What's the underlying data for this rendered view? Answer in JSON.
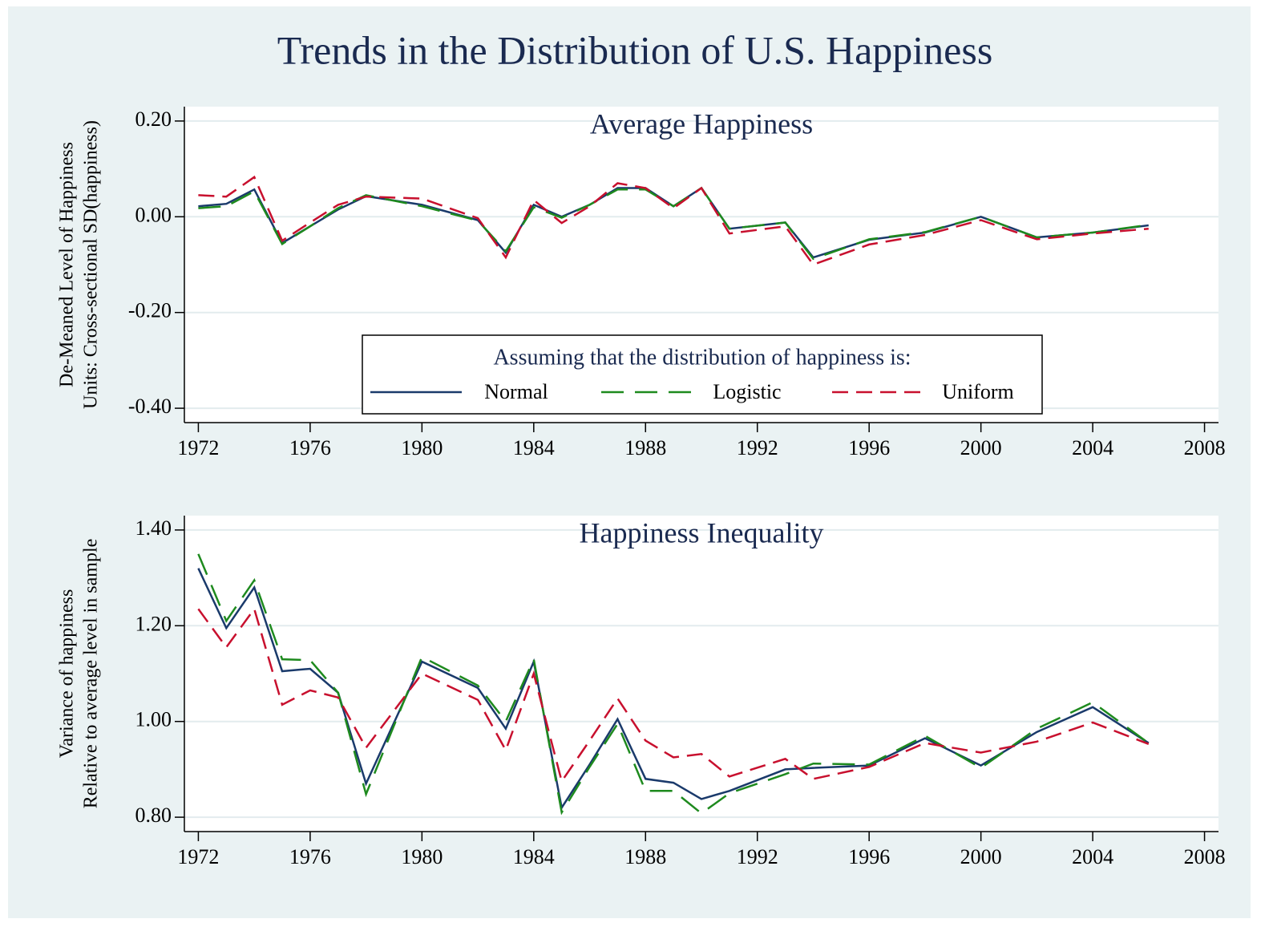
{
  "title": "Trends in the Distribution of U.S. Happiness",
  "chart_data": [
    {
      "type": "line",
      "title": "Average Happiness",
      "ylabel": [
        "De-Meaned Level of Happiness",
        "Units: Cross-sectional SD(happiness)"
      ],
      "x": [
        1972,
        1973,
        1974,
        1975,
        1976,
        1977,
        1978,
        1980,
        1982,
        1983,
        1984,
        1985,
        1986,
        1987,
        1988,
        1989,
        1990,
        1991,
        1993,
        1994,
        1996,
        1998,
        2000,
        2002,
        2004,
        2006
      ],
      "series": [
        {
          "name": "Normal",
          "color": "#1a3a6b",
          "dash": "solid",
          "values": [
            0.022,
            0.027,
            0.057,
            -0.055,
            -0.02,
            0.015,
            0.043,
            0.025,
            -0.007,
            -0.075,
            0.025,
            0.0,
            0.025,
            0.06,
            0.06,
            0.022,
            0.06,
            -0.025,
            -0.012,
            -0.085,
            -0.048,
            -0.033,
            0.0,
            -0.043,
            -0.033,
            -0.018
          ]
        },
        {
          "name": "Logistic",
          "color": "#1e8a1e",
          "dash": "long-dash",
          "values": [
            0.018,
            0.022,
            0.053,
            -0.057,
            -0.02,
            0.018,
            0.045,
            0.022,
            -0.008,
            -0.072,
            0.02,
            -0.002,
            0.025,
            0.057,
            0.057,
            0.022,
            0.06,
            -0.025,
            -0.012,
            -0.088,
            -0.047,
            -0.032,
            0.0,
            -0.043,
            -0.033,
            -0.017
          ]
        },
        {
          "name": "Uniform",
          "color": "#c8102e",
          "dash": "dash",
          "values": [
            0.045,
            0.042,
            0.083,
            -0.05,
            -0.012,
            0.025,
            0.042,
            0.038,
            -0.003,
            -0.085,
            0.035,
            -0.013,
            0.022,
            0.07,
            0.06,
            0.018,
            0.06,
            -0.035,
            -0.02,
            -0.1,
            -0.058,
            -0.038,
            -0.007,
            -0.047,
            -0.035,
            -0.025
          ]
        }
      ],
      "legend_title": "Assuming that the distribution of happiness is:",
      "xlim": [
        1971.5,
        2008.5
      ],
      "xticks": [
        1972,
        1976,
        1980,
        1984,
        1988,
        1992,
        1996,
        2000,
        2004,
        2008
      ],
      "ylim": [
        -0.43,
        0.23
      ],
      "yticks": [
        {
          "value": -0.4,
          "label": "-0.40"
        },
        {
          "value": -0.2,
          "label": "-0.20"
        },
        {
          "value": 0.0,
          "label": "0.00"
        },
        {
          "value": 0.2,
          "label": "0.20"
        }
      ],
      "grid": true
    },
    {
      "type": "line",
      "title": "Happiness Inequality",
      "ylabel": [
        "Variance of happiness",
        "Relative to average level in sample"
      ],
      "x": [
        1972,
        1973,
        1974,
        1975,
        1976,
        1977,
        1978,
        1980,
        1982,
        1983,
        1984,
        1985,
        1986,
        1987,
        1988,
        1989,
        1990,
        1991,
        1993,
        1994,
        1996,
        1998,
        2000,
        2002,
        2004,
        2006
      ],
      "series": [
        {
          "color": "#1a3a6b",
          "dash": "solid",
          "values": [
            1.32,
            1.195,
            1.28,
            1.105,
            1.11,
            1.06,
            0.87,
            1.125,
            1.07,
            0.985,
            1.125,
            0.82,
            0.91,
            1.005,
            0.88,
            0.872,
            0.838,
            0.855,
            0.9,
            0.903,
            0.908,
            0.965,
            0.908,
            0.978,
            1.03,
            0.955
          ]
        },
        {
          "color": "#1e8a1e",
          "dash": "long-dash",
          "values": [
            1.35,
            1.21,
            1.295,
            1.13,
            1.128,
            1.06,
            0.848,
            1.135,
            1.075,
            1.0,
            1.13,
            0.81,
            0.905,
            0.995,
            0.855,
            0.855,
            0.808,
            0.85,
            0.89,
            0.912,
            0.91,
            0.97,
            0.903,
            0.985,
            1.04,
            0.955
          ]
        },
        {
          "color": "#c8102e",
          "dash": "dash",
          "values": [
            1.235,
            1.155,
            1.235,
            1.035,
            1.065,
            1.05,
            0.945,
            1.1,
            1.045,
            0.94,
            1.1,
            0.875,
            0.96,
            1.048,
            0.96,
            0.925,
            0.932,
            0.885,
            0.922,
            0.88,
            0.905,
            0.955,
            0.935,
            0.958,
            0.998,
            0.953
          ]
        }
      ],
      "xlim": [
        1971.5,
        2008.5
      ],
      "xticks": [
        1972,
        1976,
        1980,
        1984,
        1988,
        1992,
        1996,
        2000,
        2004,
        2008
      ],
      "ylim": [
        0.77,
        1.43
      ],
      "yticks": [
        {
          "value": 0.8,
          "label": "0.80"
        },
        {
          "value": 1.0,
          "label": "1.00"
        },
        {
          "value": 1.2,
          "label": "1.20"
        },
        {
          "value": 1.4,
          "label": "1.40"
        }
      ],
      "grid": true
    }
  ]
}
